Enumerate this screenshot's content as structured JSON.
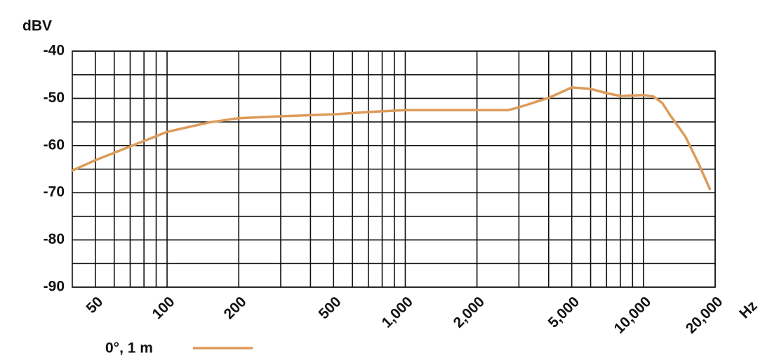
{
  "chart_data": {
    "type": "line",
    "x_label": "Hz",
    "y_label": "dBV",
    "xscale": "log",
    "grid": true,
    "x": [
      40,
      50,
      100,
      150,
      200,
      300,
      500,
      700,
      1000,
      1500,
      2000,
      2700,
      3000,
      4000,
      5000,
      6000,
      7000,
      8000,
      10000,
      11000,
      12000,
      13000,
      15000,
      17000,
      19000
    ],
    "series": [
      {
        "name": "0°, 1 m",
        "color": "#dd9b5a",
        "values": [
          -65.3,
          -63.1,
          -57.1,
          -55.1,
          -54.2,
          -53.8,
          -53.4,
          -52.9,
          -52.5,
          -52.5,
          -52.5,
          -52.5,
          -51.9,
          -49.9,
          -47.7,
          -48,
          -48.9,
          -49.5,
          -49.3,
          -49.6,
          -51,
          -53.7,
          -58.1,
          -63.7,
          -69.2
        ]
      }
    ],
    "xlim": [
      40,
      20000
    ],
    "xticks": [
      50,
      100,
      200,
      500,
      {
        "value": 1000,
        "label": "1,000"
      },
      {
        "value": 2000,
        "label": "2,000"
      },
      {
        "value": 5000,
        "label": "5,000"
      },
      {
        "value": 10000,
        "label": "10,000"
      },
      {
        "value": 20000,
        "label": "20,000"
      }
    ],
    "xgrid": [
      60,
      70,
      80,
      90,
      300,
      400,
      600,
      700,
      800,
      900,
      3000,
      4000,
      6000,
      7000,
      8000,
      9000
    ],
    "ylim": [
      -90,
      -40
    ],
    "yticks": [
      -90,
      -80,
      -70,
      -60,
      -50,
      -40
    ],
    "ygrid": [
      -85,
      -75,
      -65,
      -55,
      -45
    ]
  }
}
